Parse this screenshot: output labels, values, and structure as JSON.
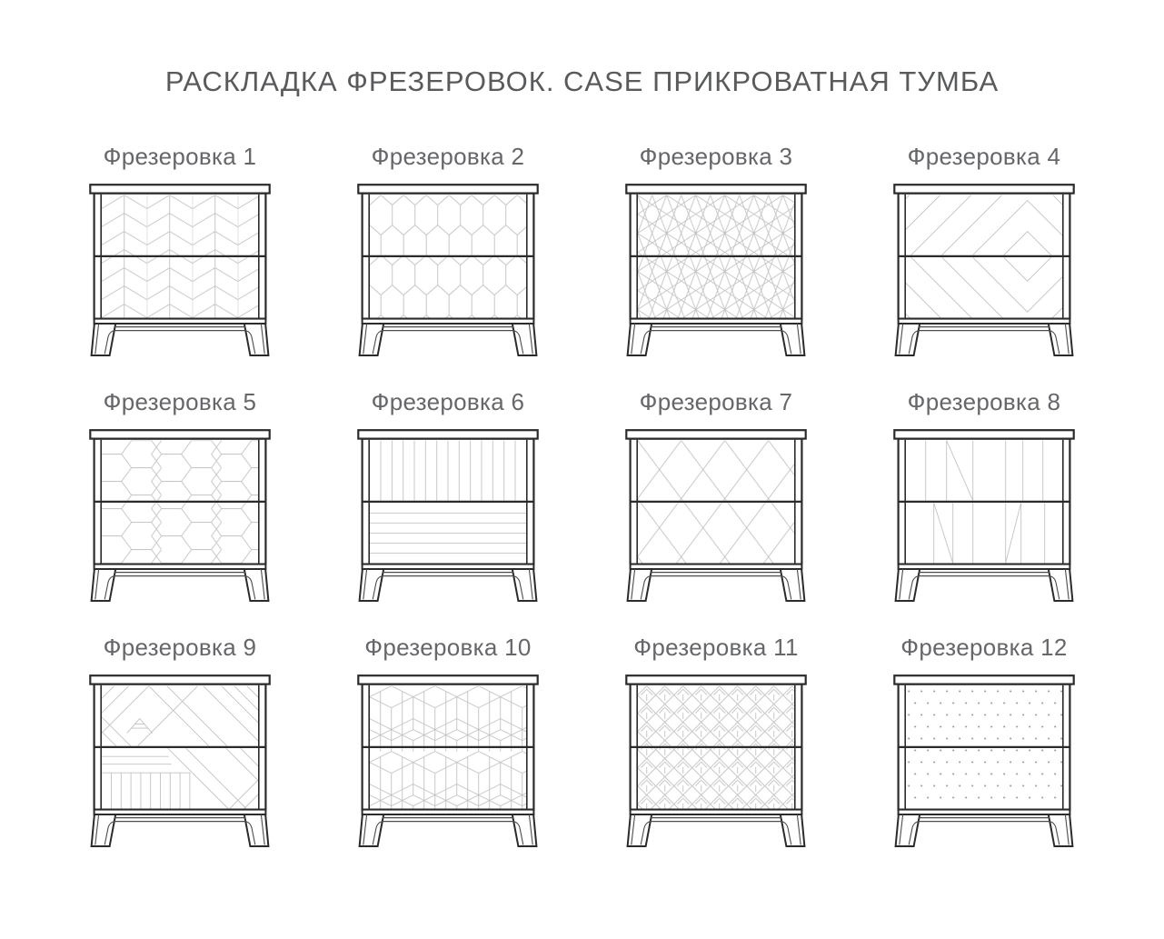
{
  "title": "РАСКЛАДКА ФРЕЗЕРОВОК. CASE ПРИКРОВАТНАЯ ТУМБА",
  "colors": {
    "background": "#ffffff",
    "outline": "#2b2b2b",
    "outline_soft": "#4c4c4c",
    "pattern_line": "#c2c2c3",
    "dot": "#8d8d8d",
    "title_text": "#595a5c",
    "label_text": "#66676a"
  },
  "cabinets": [
    {
      "label": "Фрезеровка 1",
      "pattern": "herringbone-columns"
    },
    {
      "label": "Фрезеровка 2",
      "pattern": "elongated-honeycomb"
    },
    {
      "label": "Фрезеровка 3",
      "pattern": "diamond-cubes"
    },
    {
      "label": "Фрезеровка 4",
      "pattern": "large-chevron"
    },
    {
      "label": "Фрезеровка 5",
      "pattern": "honeycomb"
    },
    {
      "label": "Фрезеровка 6",
      "pattern": "vertical-horizontal-lines"
    },
    {
      "label": "Фрезеровка 7",
      "pattern": "diamond-lattice"
    },
    {
      "label": "Фрезеровка 8",
      "pattern": "sparse-verticals-diagonals"
    },
    {
      "label": "Фрезеровка 9",
      "pattern": "plank-mosaic"
    },
    {
      "label": "Фрезеровка 10",
      "pattern": "iso-cubes"
    },
    {
      "label": "Фрезеровка 11",
      "pattern": "deco-diamond-petals"
    },
    {
      "label": "Фрезеровка 12",
      "pattern": "dot-grid"
    }
  ]
}
